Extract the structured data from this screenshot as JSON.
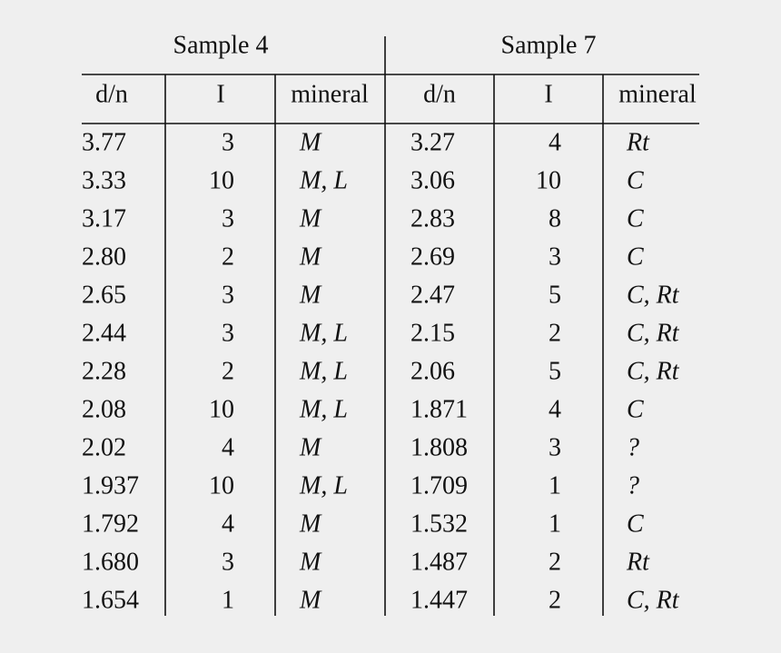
{
  "table": {
    "group_headers": [
      "Sample 4",
      "Sample 7"
    ],
    "columns": [
      "d/n",
      "I",
      "mineral",
      "d/n",
      "I",
      "mineral"
    ],
    "rows": [
      [
        "3.77",
        "3",
        "M",
        "3.27",
        "4",
        "Rt"
      ],
      [
        "3.33",
        "10",
        "M, L",
        "3.06",
        "10",
        "C"
      ],
      [
        "3.17",
        "3",
        "M",
        "2.83",
        "8",
        "C"
      ],
      [
        "2.80",
        "2",
        "M",
        "2.69",
        "3",
        "C"
      ],
      [
        "2.65",
        "3",
        "M",
        "2.47",
        "5",
        "C, Rt"
      ],
      [
        "2.44",
        "3",
        "M, L",
        "2.15",
        "2",
        "C, Rt"
      ],
      [
        "2.28",
        "2",
        "M, L",
        "2.06",
        "5",
        "C, Rt"
      ],
      [
        "2.08",
        "10",
        "M, L",
        "1.871",
        "4",
        "C"
      ],
      [
        "2.02",
        "4",
        "M",
        "1.808",
        "3",
        "?"
      ],
      [
        "1.937",
        "10",
        "M, L",
        "1.709",
        "1",
        "?"
      ],
      [
        "1.792",
        "4",
        "M",
        "1.532",
        "1",
        "C"
      ],
      [
        "1.680",
        "3",
        "M",
        "1.487",
        "2",
        "Rt"
      ],
      [
        "1.654",
        "1",
        "M",
        "1.447",
        "2",
        "C, Rt"
      ]
    ]
  }
}
